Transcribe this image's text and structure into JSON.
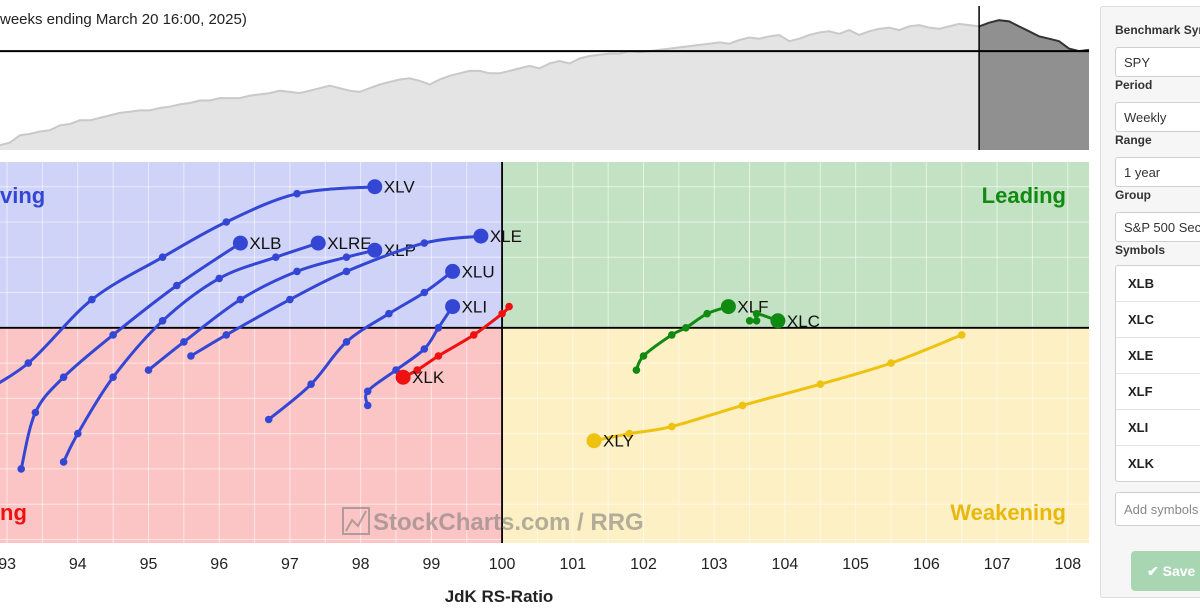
{
  "header": {
    "period_text": "weeks ending March 20 16:00, 2025)"
  },
  "quadrants": {
    "improving": "ving",
    "leading": "Leading",
    "lagging": "ng",
    "weakening": "Weakening",
    "colors": {
      "improving": "#cfd3f7",
      "leading": "#c3e2c3",
      "lagging": "#fcc5c5",
      "weakening": "#fcf0c4"
    }
  },
  "watermark": "StockCharts.com / RRG",
  "chart_data": [
    {
      "type": "area",
      "subtype": "benchmark-history",
      "x": [
        0,
        1,
        2,
        3,
        4,
        5,
        6,
        7,
        8,
        9,
        10,
        11,
        12,
        13,
        14,
        15,
        16,
        17,
        18,
        19,
        20,
        21,
        22,
        23,
        24,
        25,
        26,
        27,
        28,
        29,
        30,
        31,
        32,
        33,
        34,
        35,
        36,
        37,
        38,
        39,
        40,
        41,
        42,
        43,
        44,
        45,
        46,
        47,
        48,
        49,
        50,
        51,
        52,
        53,
        54,
        55,
        56,
        57,
        58,
        59,
        60,
        61,
        62,
        63,
        64,
        65,
        66,
        67,
        68,
        69,
        70,
        71,
        72,
        73,
        74,
        75,
        76,
        77,
        78,
        79,
        80,
        81,
        82,
        83,
        84,
        85,
        86,
        87,
        88,
        89,
        90,
        91,
        92,
        93,
        94,
        95,
        96,
        97,
        98,
        99,
        100,
        101,
        102,
        103,
        104,
        105,
        106,
        107,
        108,
        109
      ],
      "values": [
        4,
        6,
        12,
        13,
        15,
        16,
        20,
        21,
        24,
        24,
        26,
        28,
        30,
        31,
        32,
        32,
        34,
        35,
        37,
        38,
        40,
        40,
        42,
        42,
        42,
        44,
        45,
        46,
        48,
        47,
        46,
        48,
        50,
        52,
        50,
        48,
        47,
        50,
        53,
        55,
        57,
        58,
        56,
        53,
        57,
        60,
        62,
        64,
        64,
        62,
        62,
        64,
        66,
        68,
        66,
        70,
        72,
        70,
        74,
        76,
        77,
        78,
        78,
        80,
        79,
        80,
        81,
        82,
        83,
        84,
        85,
        86,
        87,
        86,
        89,
        91,
        90,
        92,
        93,
        88,
        90,
        93,
        95,
        96,
        94,
        97,
        93,
        96,
        98,
        99,
        97,
        100,
        101,
        99,
        98,
        100,
        102,
        101,
        100,
        103,
        105,
        104,
        100,
        96,
        92,
        90,
        88,
        82,
        80,
        81
      ],
      "baseline": 80,
      "split_index": 98,
      "colors": {
        "history": "#e4e4e4",
        "recent": "#909090"
      }
    },
    {
      "type": "scatter",
      "subtype": "relative-rotation-graph",
      "xlabel": "JdK RS-Ratio",
      "ylabel": "",
      "xlim": [
        92.9,
        108.3
      ],
      "ylim": [
        96.95,
        102.35
      ],
      "center": [
        100,
        100
      ],
      "x_ticks": [
        "93",
        "94",
        "95",
        "96",
        "97",
        "98",
        "99",
        "100",
        "101",
        "102",
        "103",
        "104",
        "105",
        "106",
        "107",
        "108"
      ],
      "series": [
        {
          "name": "XLV",
          "color": "#3447d4",
          "label_pos": "right",
          "points": [
            [
              92.5,
              99.0
            ],
            [
              93.3,
              99.5
            ],
            [
              94.2,
              100.4
            ],
            [
              95.2,
              101.0
            ],
            [
              96.1,
              101.5
            ],
            [
              97.1,
              101.9
            ],
            [
              98.2,
              102.0
            ]
          ]
        },
        {
          "name": "XLB",
          "color": "#3447d4",
          "label_pos": "right",
          "points": [
            [
              93.2,
              98.0
            ],
            [
              93.4,
              98.8
            ],
            [
              93.8,
              99.3
            ],
            [
              94.5,
              99.9
            ],
            [
              95.4,
              100.6
            ],
            [
              96.3,
              101.2
            ]
          ]
        },
        {
          "name": "XLRE",
          "color": "#3447d4",
          "label_pos": "right",
          "points": [
            [
              93.8,
              98.1
            ],
            [
              94.0,
              98.5
            ],
            [
              94.5,
              99.3
            ],
            [
              95.2,
              100.1
            ],
            [
              96.0,
              100.7
            ],
            [
              96.8,
              101.0
            ],
            [
              97.4,
              101.2
            ]
          ]
        },
        {
          "name": "XLP",
          "color": "#3447d4",
          "label_pos": "right",
          "points": [
            [
              95.0,
              99.4
            ],
            [
              95.5,
              99.8
            ],
            [
              96.3,
              100.4
            ],
            [
              97.1,
              100.8
            ],
            [
              97.8,
              101.0
            ],
            [
              98.2,
              101.1
            ]
          ]
        },
        {
          "name": "XLE",
          "color": "#3447d4",
          "label_pos": "right",
          "points": [
            [
              95.6,
              99.6
            ],
            [
              96.1,
              99.9
            ],
            [
              97.0,
              100.4
            ],
            [
              97.8,
              100.8
            ],
            [
              98.9,
              101.2
            ],
            [
              99.7,
              101.3
            ]
          ]
        },
        {
          "name": "XLU",
          "color": "#3447d4",
          "label_pos": "right",
          "points": [
            [
              96.7,
              98.7
            ],
            [
              97.3,
              99.2
            ],
            [
              97.8,
              99.8
            ],
            [
              98.4,
              100.2
            ],
            [
              98.9,
              100.5
            ],
            [
              99.3,
              100.8
            ]
          ]
        },
        {
          "name": "XLI",
          "color": "#3447d4",
          "label_pos": "right",
          "points": [
            [
              98.1,
              98.9
            ],
            [
              98.1,
              99.1
            ],
            [
              98.5,
              99.4
            ],
            [
              98.9,
              99.7
            ],
            [
              99.1,
              100.0
            ],
            [
              99.3,
              100.3
            ]
          ]
        },
        {
          "name": "XLK",
          "color": "#ee1111",
          "label_pos": "right",
          "points": [
            [
              100.1,
              100.3
            ],
            [
              100.0,
              100.2
            ],
            [
              99.6,
              99.9
            ],
            [
              99.1,
              99.6
            ],
            [
              98.8,
              99.4
            ],
            [
              98.6,
              99.3
            ]
          ]
        },
        {
          "name": "XLF",
          "color": "#108a10",
          "label_pos": "right",
          "points": [
            [
              101.9,
              99.4
            ],
            [
              102.0,
              99.6
            ],
            [
              102.4,
              99.9
            ],
            [
              102.6,
              100.0
            ],
            [
              102.9,
              100.2
            ],
            [
              103.2,
              100.3
            ]
          ]
        },
        {
          "name": "XLC",
          "color": "#108a10",
          "label_pos": "right",
          "points": [
            [
              103.5,
              100.1
            ],
            [
              103.6,
              100.1
            ],
            [
              103.6,
              100.2
            ],
            [
              103.9,
              100.1
            ]
          ]
        },
        {
          "name": "XLY",
          "color": "#eec20e",
          "label_pos": "right",
          "points": [
            [
              106.5,
              99.9
            ],
            [
              105.5,
              99.5
            ],
            [
              104.5,
              99.2
            ],
            [
              103.4,
              98.9
            ],
            [
              102.4,
              98.6
            ],
            [
              101.8,
              98.5
            ],
            [
              101.3,
              98.4
            ]
          ]
        }
      ]
    }
  ],
  "panel": {
    "benchmark_label": "Benchmark Sym",
    "benchmark_value": "SPY",
    "period_label": "Period",
    "period_value": "Weekly",
    "range_label": "Range",
    "range_value": "1 year",
    "group_label": "Group",
    "group_value": "S&P 500 Sec",
    "symbols_label": "Symbols",
    "symbols": [
      "XLB",
      "XLC",
      "XLE",
      "XLF",
      "XLI",
      "XLK"
    ],
    "add_placeholder": "Add symbols",
    "save_label": "Save"
  }
}
